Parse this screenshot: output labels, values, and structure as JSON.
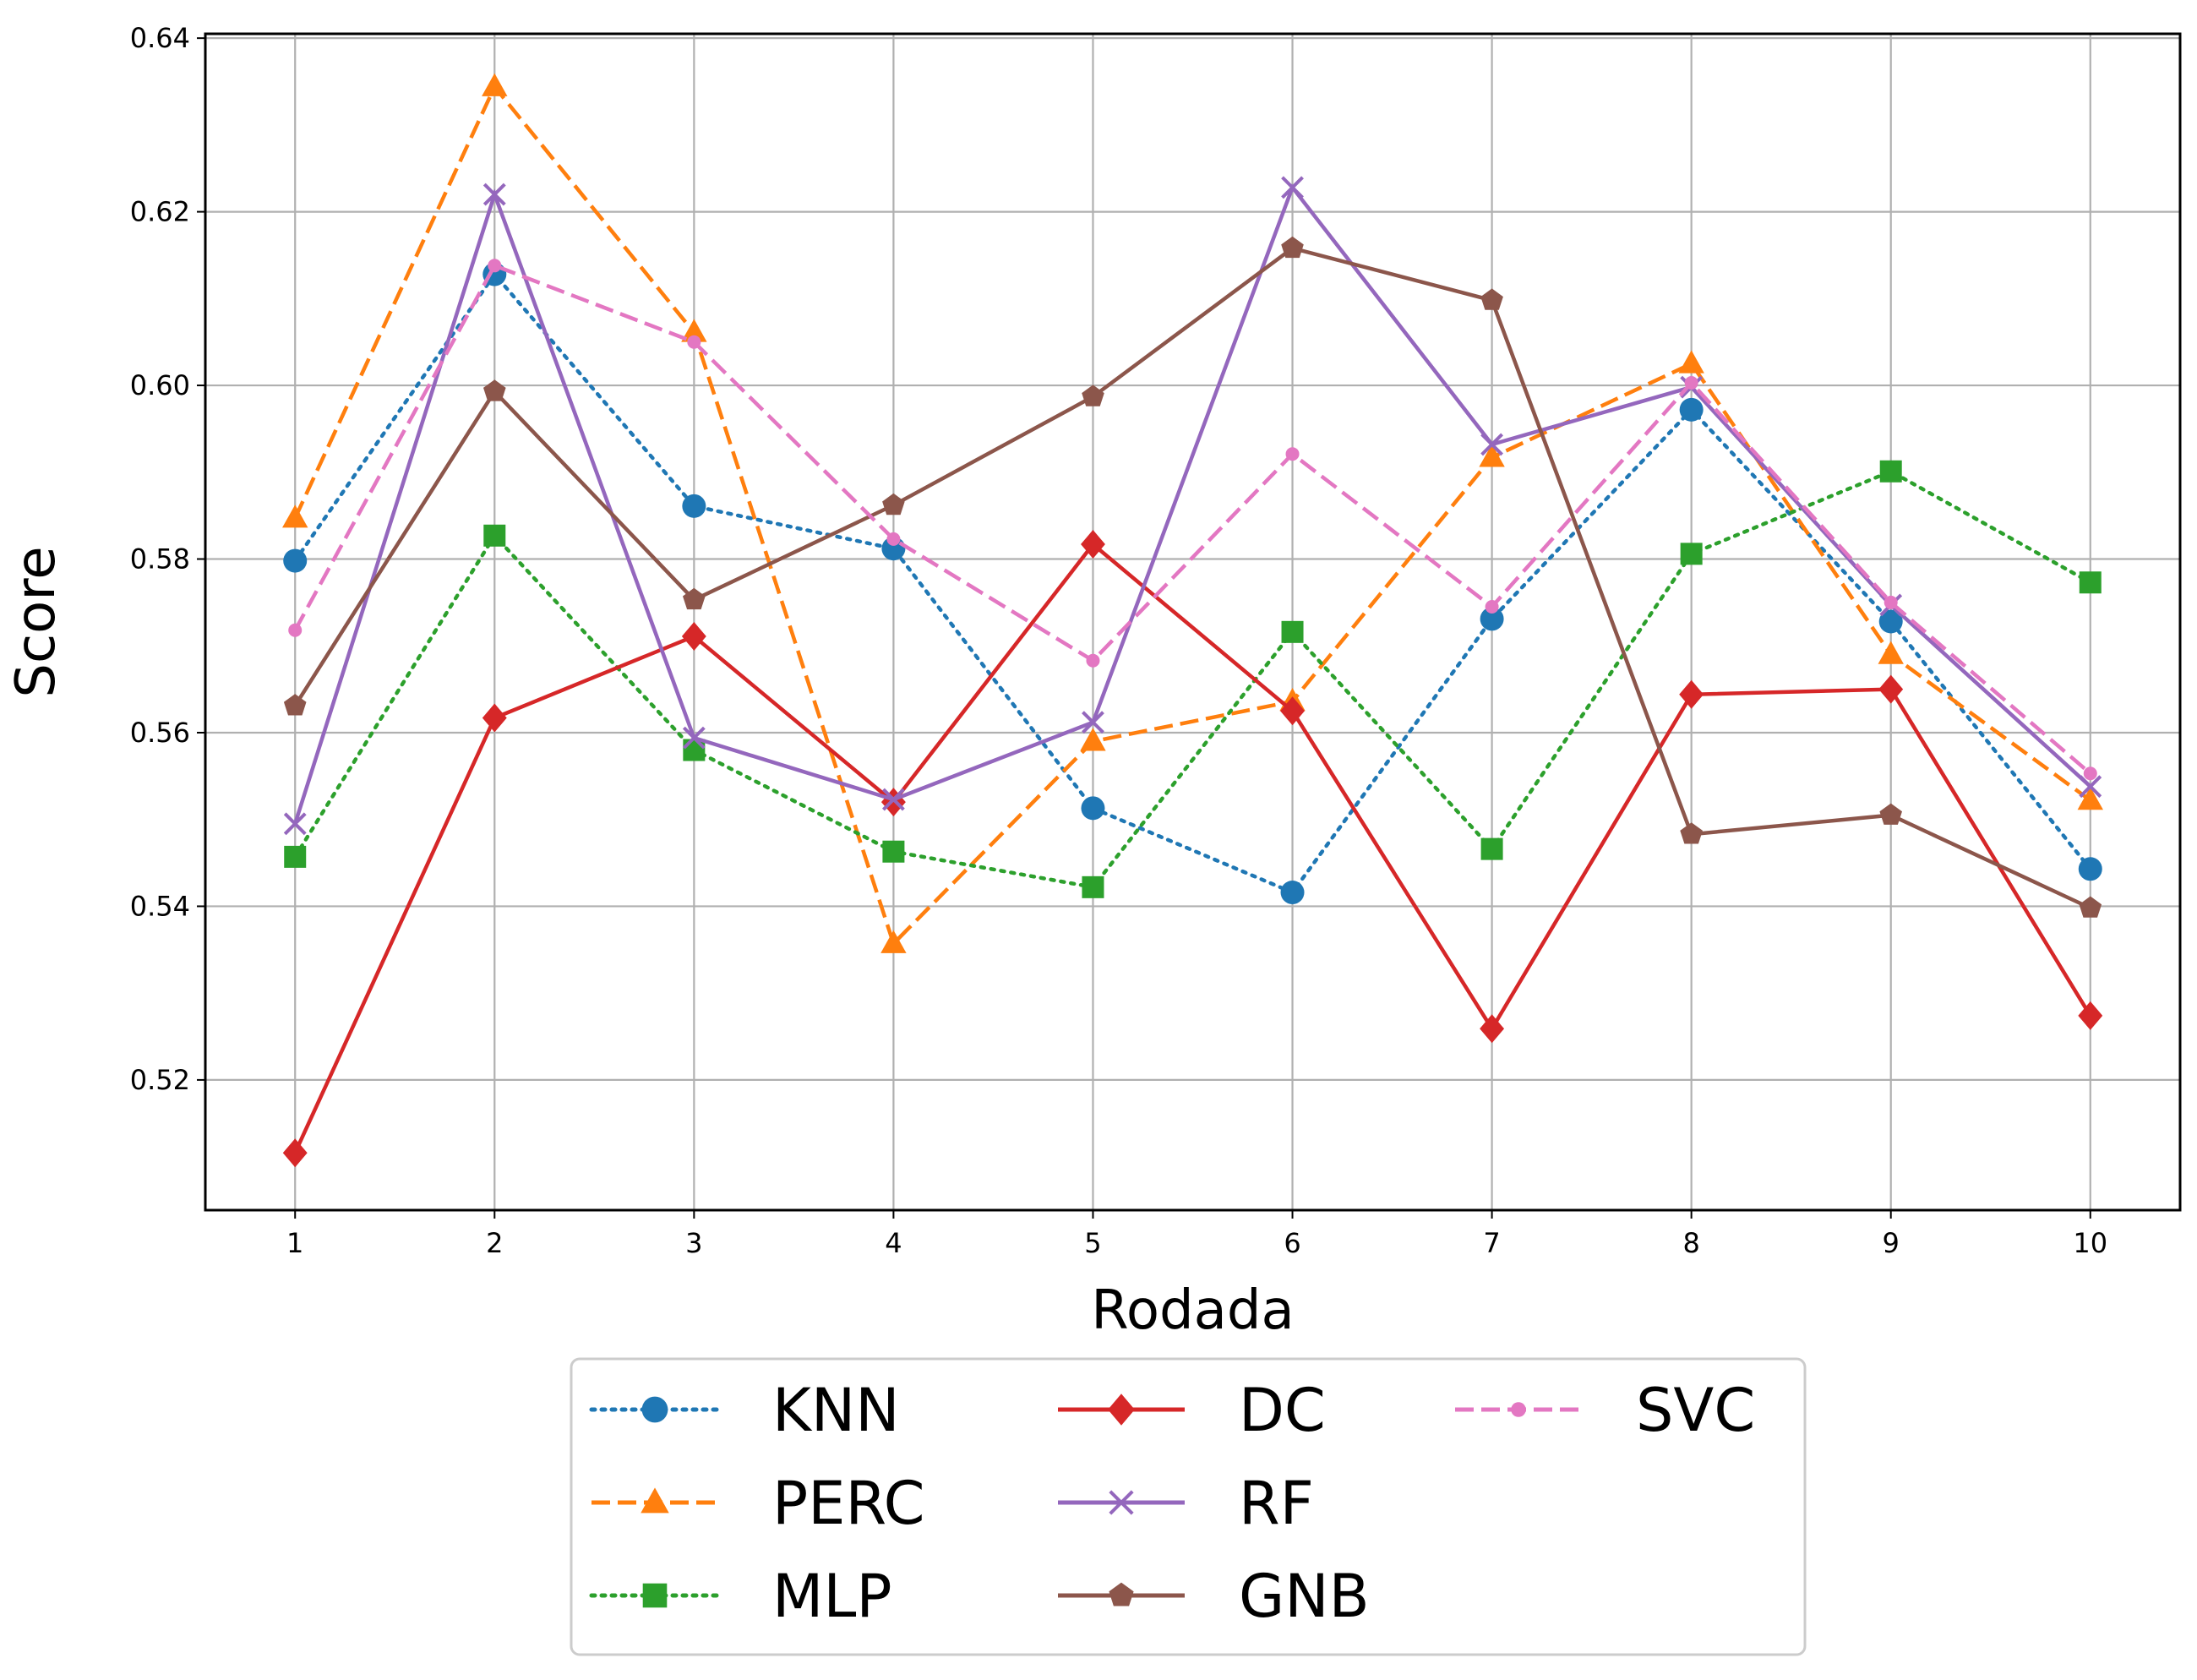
{
  "chart_data": {
    "type": "line",
    "xlabel": "Rodada",
    "ylabel": "Score",
    "x": [
      1,
      2,
      3,
      4,
      5,
      6,
      7,
      8,
      9,
      10
    ],
    "x_ticks": [
      "1",
      "2",
      "3",
      "4",
      "5",
      "6",
      "7",
      "8",
      "9",
      "10"
    ],
    "xlim": [
      0.55,
      10.45
    ],
    "ylim": [
      0.505,
      0.6405
    ],
    "y_ticks": [
      "0.52",
      "0.54",
      "0.56",
      "0.58",
      "0.60",
      "0.62",
      "0.64"
    ],
    "y_tick_values": [
      0.52,
      0.54,
      0.56,
      0.58,
      0.6,
      0.62,
      0.64
    ],
    "grid": true,
    "legend_position": "bottom-center, below axis, 3 columns",
    "series": [
      {
        "name": "KNN",
        "color": "#1f77b4",
        "dash": "dotted",
        "marker": "circle",
        "values": [
          0.5798,
          0.6128,
          0.5861,
          0.5812,
          0.5513,
          0.5416,
          0.5731,
          0.5972,
          0.5728,
          0.5443
        ]
      },
      {
        "name": "PERC",
        "color": "#ff7f0e",
        "dash": "dashed",
        "marker": "triangle",
        "values": [
          0.5847,
          0.6344,
          0.6061,
          0.5357,
          0.559,
          0.5636,
          0.5917,
          0.6025,
          0.569,
          0.5522
        ]
      },
      {
        "name": "MLP",
        "color": "#2ca02c",
        "dash": "dotted",
        "marker": "square",
        "values": [
          0.5457,
          0.5827,
          0.558,
          0.5463,
          0.5422,
          0.5716,
          0.5466,
          0.5806,
          0.5901,
          0.5773
        ]
      },
      {
        "name": "DC",
        "color": "#d62728",
        "dash": "solid",
        "marker": "diamond",
        "values": [
          0.5116,
          0.5617,
          0.5711,
          0.552,
          0.5817,
          0.5625,
          0.5259,
          0.5644,
          0.565,
          0.5274
        ]
      },
      {
        "name": "RF",
        "color": "#9467bd",
        "dash": "solid",
        "marker": "x",
        "values": [
          0.5495,
          0.622,
          0.5594,
          0.5523,
          0.5612,
          0.6228,
          0.5932,
          0.5998,
          0.5747,
          0.5538
        ]
      },
      {
        "name": "GNB",
        "color": "#8c564b",
        "dash": "solid",
        "marker": "pentagon",
        "values": [
          0.5631,
          0.5993,
          0.5753,
          0.5862,
          0.5987,
          0.6158,
          0.6098,
          0.5483,
          0.5505,
          0.5398
        ]
      },
      {
        "name": "SVC",
        "color": "#e377c2",
        "dash": "dashed",
        "marker": "point",
        "values": [
          0.5718,
          0.6138,
          0.605,
          0.5823,
          0.5683,
          0.5921,
          0.5745,
          0.6003,
          0.575,
          0.5553
        ]
      }
    ]
  }
}
